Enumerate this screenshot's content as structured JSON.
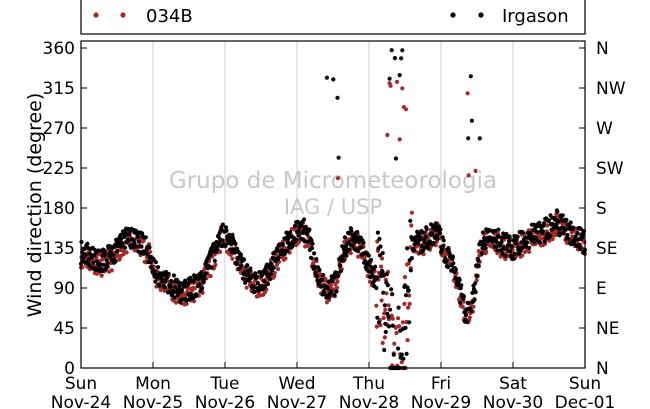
{
  "chart_data": {
    "type": "scatter",
    "title": "",
    "xlabel": "",
    "ylabel": "Wind direction (degree)",
    "ylim": [
      0,
      360
    ],
    "yticks": [
      0,
      45,
      90,
      135,
      180,
      225,
      270,
      315,
      360
    ],
    "y2_tick_labels": [
      "N",
      "NE",
      "E",
      "SE",
      "S",
      "SW",
      "W",
      "NW",
      "N"
    ],
    "xlim_days": [
      0,
      7
    ],
    "x_tick_labels": [
      {
        "day": "Sun",
        "date": "Nov-24"
      },
      {
        "day": "Mon",
        "date": "Nov-25"
      },
      {
        "day": "Tue",
        "date": "Nov-26"
      },
      {
        "day": "Wed",
        "date": "Nov-27"
      },
      {
        "day": "Thu",
        "date": "Nov-28"
      },
      {
        "day": "Fri",
        "date": "Nov-29"
      },
      {
        "day": "Sat",
        "date": "Nov-30"
      },
      {
        "day": "Sun",
        "date": "Dec-01"
      }
    ],
    "grid": "vertical",
    "legend_placement": "top",
    "watermark": [
      "Grupo de Micrometeorologia",
      "IAG / USP"
    ],
    "series": [
      {
        "name": "034B",
        "color": "#a52a2a",
        "offset": -4
      },
      {
        "name": "Irgason",
        "color": "#000000",
        "offset": 0
      }
    ],
    "trend_points": [
      [
        0.0,
        130
      ],
      [
        0.15,
        125
      ],
      [
        0.3,
        120
      ],
      [
        0.45,
        128
      ],
      [
        0.55,
        140
      ],
      [
        0.7,
        148
      ],
      [
        0.85,
        140
      ],
      [
        0.95,
        130
      ],
      [
        1.05,
        105
      ],
      [
        1.25,
        95
      ],
      [
        1.4,
        85
      ],
      [
        1.55,
        90
      ],
      [
        1.7,
        100
      ],
      [
        1.85,
        130
      ],
      [
        1.95,
        150
      ],
      [
        2.1,
        140
      ],
      [
        2.2,
        120
      ],
      [
        2.3,
        105
      ],
      [
        2.45,
        95
      ],
      [
        2.55,
        100
      ],
      [
        2.65,
        115
      ],
      [
        2.75,
        130
      ],
      [
        2.85,
        140
      ],
      [
        2.95,
        150
      ],
      [
        3.05,
        158
      ],
      [
        3.15,
        150
      ],
      [
        3.25,
        118
      ],
      [
        3.35,
        95
      ],
      [
        3.45,
        88
      ],
      [
        3.55,
        98
      ],
      [
        3.65,
        135
      ],
      [
        3.78,
        148
      ],
      [
        3.9,
        138
      ],
      [
        4.0,
        115
      ],
      [
        4.1,
        100
      ],
      [
        4.25,
        60
      ],
      [
        4.35,
        10
      ],
      [
        4.45,
        25
      ],
      [
        4.52,
        70
      ],
      [
        4.6,
        145
      ],
      [
        4.72,
        142
      ],
      [
        4.85,
        148
      ],
      [
        4.95,
        155
      ],
      [
        5.05,
        130
      ],
      [
        5.15,
        120
      ],
      [
        5.25,
        90
      ],
      [
        5.35,
        60
      ],
      [
        5.45,
        80
      ],
      [
        5.55,
        140
      ],
      [
        5.7,
        150
      ],
      [
        5.85,
        140
      ],
      [
        6.0,
        135
      ],
      [
        6.15,
        145
      ],
      [
        6.3,
        150
      ],
      [
        6.45,
        155
      ],
      [
        6.6,
        165
      ],
      [
        6.75,
        155
      ],
      [
        6.9,
        148
      ],
      [
        7.0,
        140
      ]
    ]
  }
}
